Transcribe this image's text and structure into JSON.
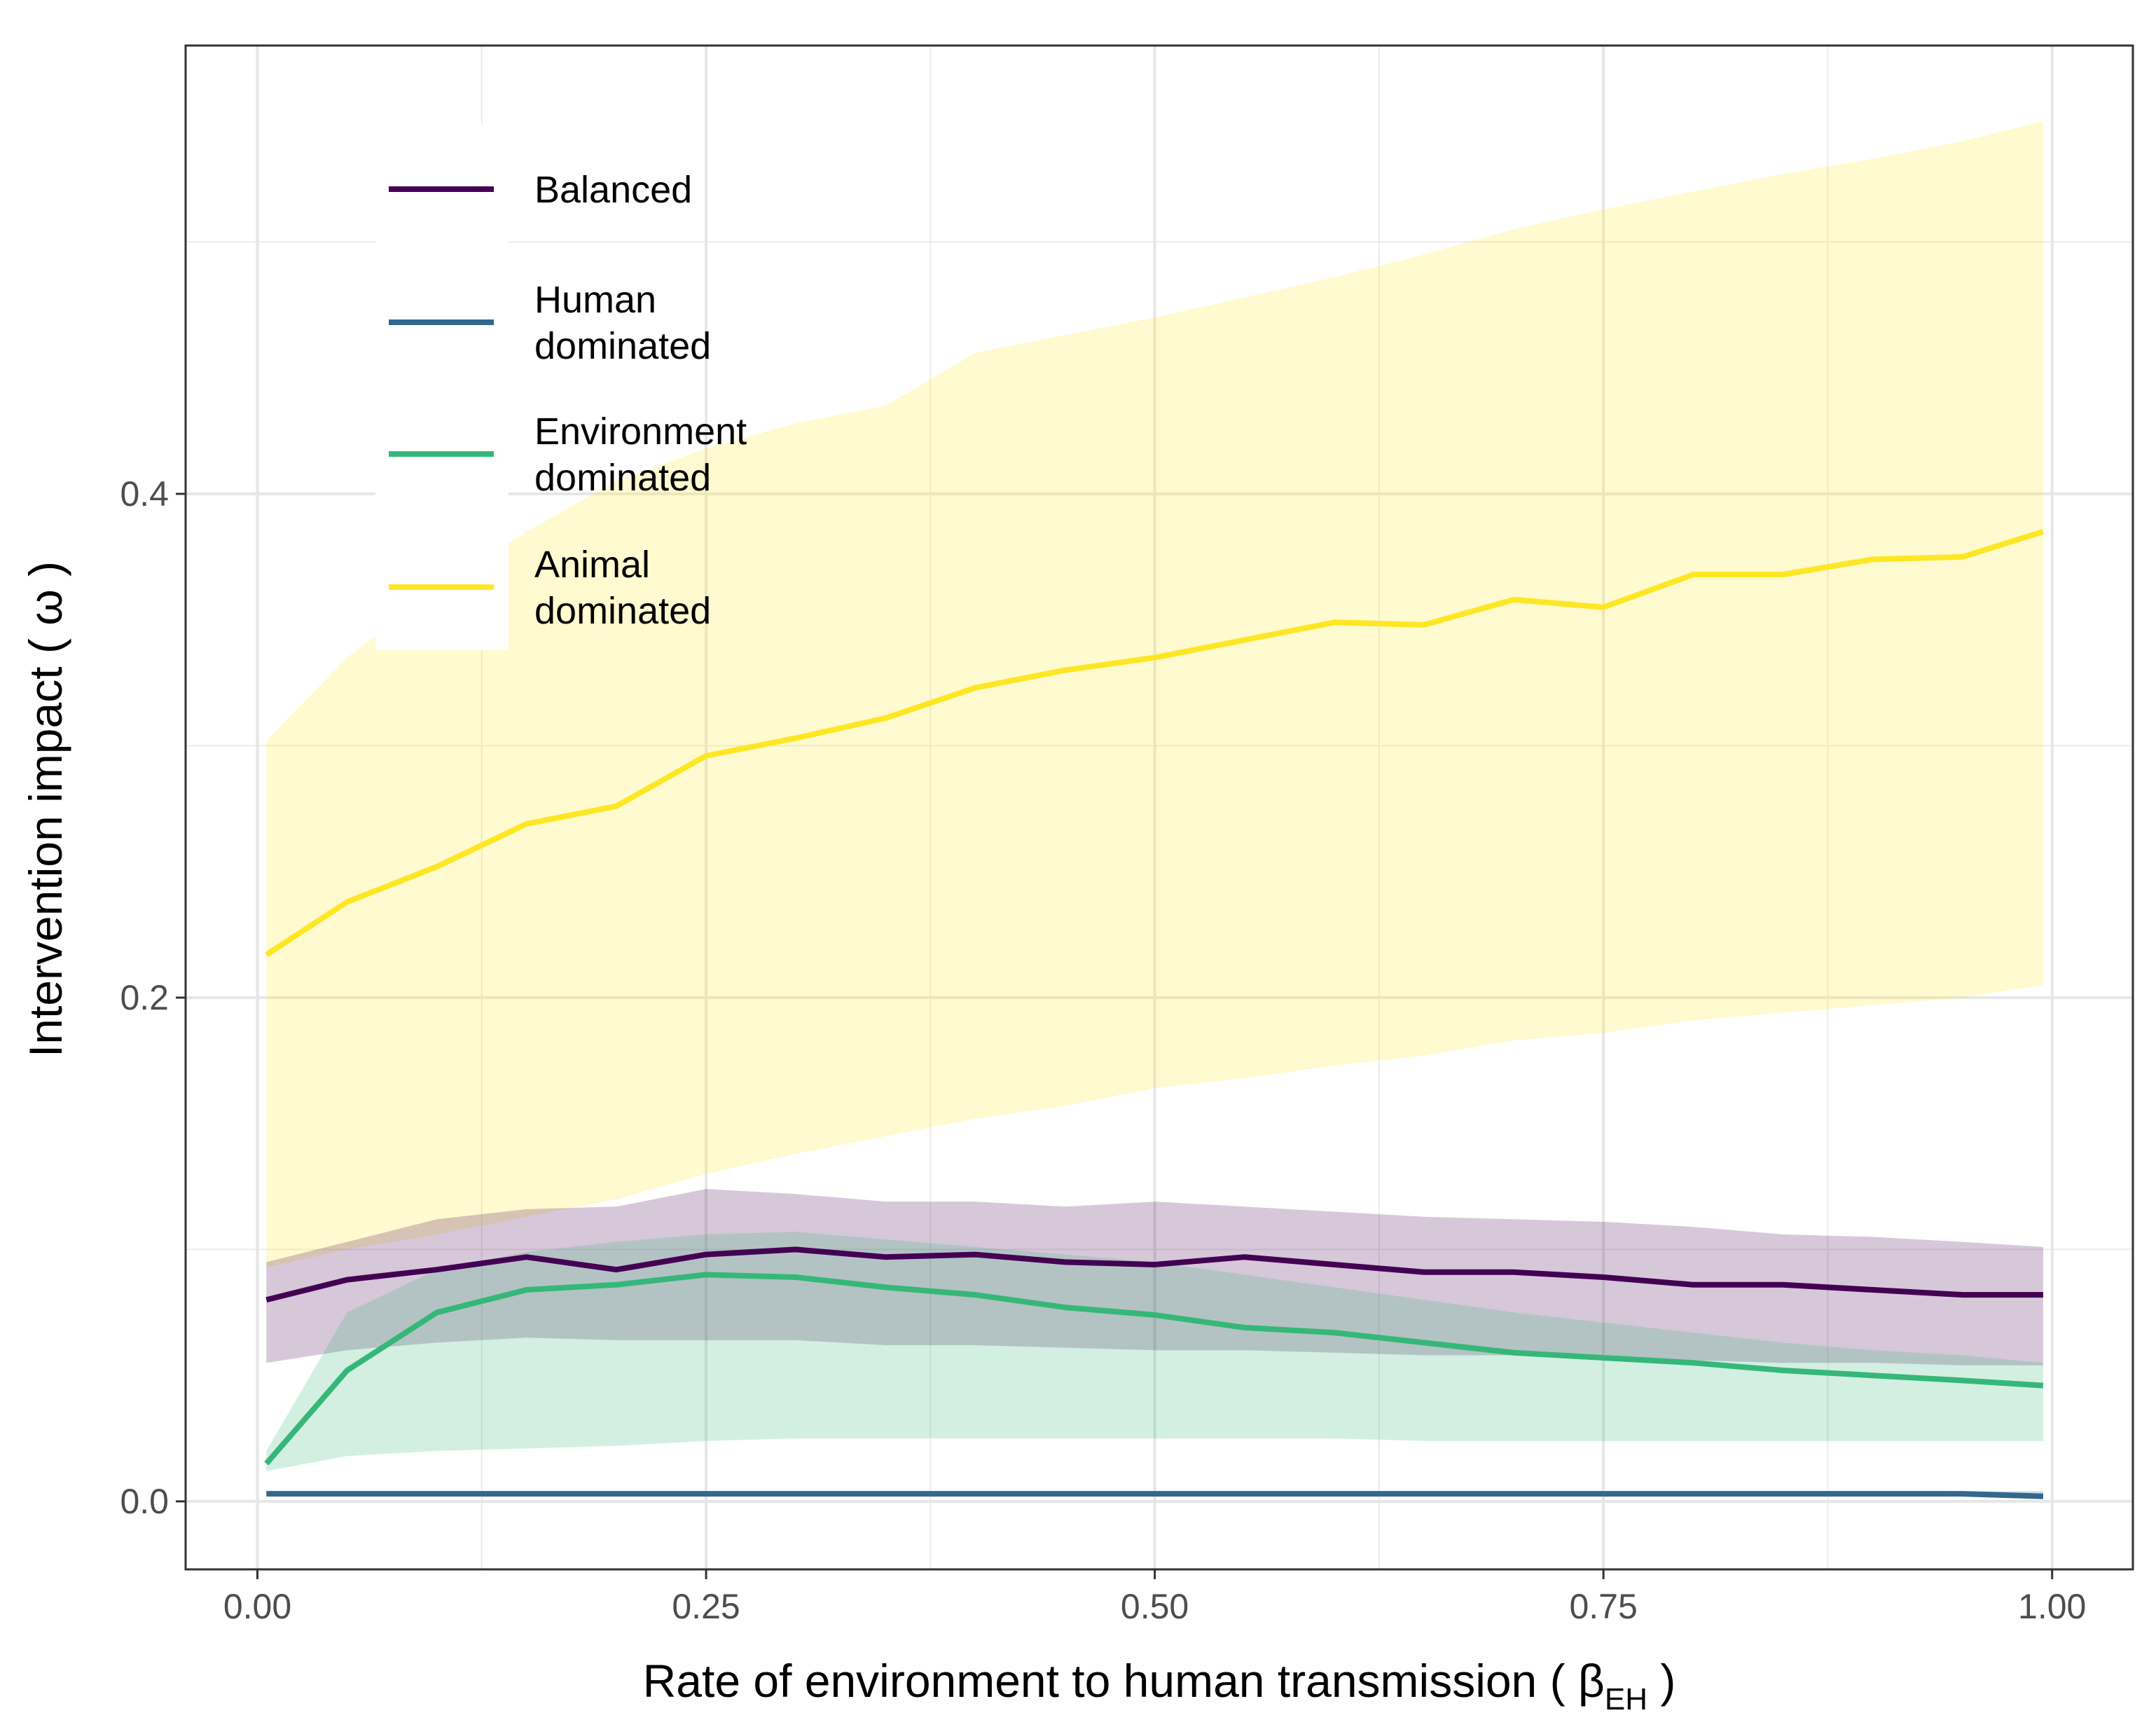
{
  "chart_data": {
    "type": "line",
    "title": "",
    "xlabel": "Rate of environment to human transmission ( β",
    "xlabel_sub": "EH",
    "xlabel_end": " )",
    "ylabel": "Intervention impact ( ω )",
    "xlim": [
      -0.04,
      1.045
    ],
    "ylim": [
      -0.027,
      0.578
    ],
    "x_ticks": [
      0.0,
      0.25,
      0.5,
      0.75,
      1.0
    ],
    "x_tick_labels": [
      "0.00",
      "0.25",
      "0.50",
      "0.75",
      "1.00"
    ],
    "y_ticks": [
      0.0,
      0.2,
      0.4
    ],
    "y_tick_labels": [
      "0.0",
      "0.2",
      "0.4"
    ],
    "grid": true,
    "legend_position": "top-left",
    "x": [
      0.005,
      0.05,
      0.1,
      0.15,
      0.2,
      0.25,
      0.3,
      0.35,
      0.4,
      0.45,
      0.5,
      0.55,
      0.6,
      0.65,
      0.7,
      0.75,
      0.8,
      0.85,
      0.9,
      0.95,
      0.995
    ],
    "series": [
      {
        "name": "Balanced",
        "legend_label": [
          "Balanced"
        ],
        "color": "#440154",
        "band_opacity": 0.22,
        "mean": [
          0.08,
          0.088,
          0.092,
          0.097,
          0.092,
          0.098,
          0.1,
          0.097,
          0.098,
          0.095,
          0.094,
          0.097,
          0.094,
          0.091,
          0.091,
          0.089,
          0.086,
          0.086,
          0.084,
          0.082,
          0.082
        ],
        "lower": [
          0.055,
          0.06,
          0.063,
          0.065,
          0.064,
          0.064,
          0.064,
          0.062,
          0.062,
          0.061,
          0.06,
          0.06,
          0.059,
          0.058,
          0.058,
          0.057,
          0.056,
          0.055,
          0.055,
          0.054,
          0.054
        ],
        "upper": [
          0.095,
          0.103,
          0.112,
          0.116,
          0.117,
          0.124,
          0.122,
          0.119,
          0.119,
          0.117,
          0.119,
          0.117,
          0.115,
          0.113,
          0.112,
          0.111,
          0.109,
          0.106,
          0.105,
          0.103,
          0.101
        ]
      },
      {
        "name": "Human dominated",
        "legend_label": [
          "Human",
          "dominated"
        ],
        "color": "#31688e",
        "band_opacity": 0.25,
        "mean": [
          0.003,
          0.003,
          0.003,
          0.003,
          0.003,
          0.003,
          0.003,
          0.003,
          0.003,
          0.003,
          0.003,
          0.003,
          0.003,
          0.003,
          0.003,
          0.003,
          0.003,
          0.003,
          0.003,
          0.003,
          0.002
        ],
        "lower": [
          0.002,
          0.002,
          0.002,
          0.002,
          0.002,
          0.002,
          0.002,
          0.002,
          0.002,
          0.002,
          0.002,
          0.002,
          0.002,
          0.002,
          0.002,
          0.002,
          0.002,
          0.002,
          0.002,
          0.002,
          0.002
        ],
        "upper": [
          0.004,
          0.004,
          0.004,
          0.004,
          0.004,
          0.004,
          0.004,
          0.004,
          0.004,
          0.004,
          0.004,
          0.004,
          0.004,
          0.004,
          0.004,
          0.004,
          0.004,
          0.004,
          0.004,
          0.004,
          0.004
        ]
      },
      {
        "name": "Environment dominated",
        "legend_label": [
          "Environment",
          "dominated"
        ],
        "color": "#35b779",
        "band_opacity": 0.22,
        "mean": [
          0.015,
          0.052,
          0.075,
          0.084,
          0.086,
          0.09,
          0.089,
          0.085,
          0.082,
          0.077,
          0.074,
          0.069,
          0.067,
          0.063,
          0.059,
          0.057,
          0.055,
          0.052,
          0.05,
          0.048,
          0.046
        ],
        "lower": [
          0.012,
          0.018,
          0.02,
          0.021,
          0.022,
          0.024,
          0.025,
          0.025,
          0.025,
          0.025,
          0.025,
          0.025,
          0.025,
          0.024,
          0.024,
          0.024,
          0.024,
          0.024,
          0.024,
          0.024,
          0.024
        ],
        "upper": [
          0.02,
          0.075,
          0.092,
          0.099,
          0.103,
          0.106,
          0.107,
          0.104,
          0.101,
          0.098,
          0.095,
          0.09,
          0.085,
          0.08,
          0.075,
          0.071,
          0.067,
          0.063,
          0.06,
          0.058,
          0.055
        ]
      },
      {
        "name": "Animal dominated",
        "legend_label": [
          "Animal",
          "dominated"
        ],
        "color": "#fde725",
        "band_opacity": 0.22,
        "mean": [
          0.217,
          0.238,
          0.252,
          0.269,
          0.276,
          0.296,
          0.303,
          0.311,
          0.323,
          0.33,
          0.335,
          0.342,
          0.349,
          0.348,
          0.358,
          0.355,
          0.368,
          0.368,
          0.374,
          0.375,
          0.385
        ],
        "lower": [
          0.093,
          0.1,
          0.106,
          0.113,
          0.12,
          0.13,
          0.138,
          0.145,
          0.152,
          0.157,
          0.164,
          0.168,
          0.173,
          0.177,
          0.183,
          0.186,
          0.191,
          0.194,
          0.197,
          0.2,
          0.205
        ],
        "upper": [
          0.302,
          0.335,
          0.362,
          0.385,
          0.405,
          0.418,
          0.428,
          0.435,
          0.456,
          0.463,
          0.47,
          0.478,
          0.486,
          0.495,
          0.505,
          0.513,
          0.52,
          0.527,
          0.533,
          0.54,
          0.548
        ]
      }
    ]
  }
}
